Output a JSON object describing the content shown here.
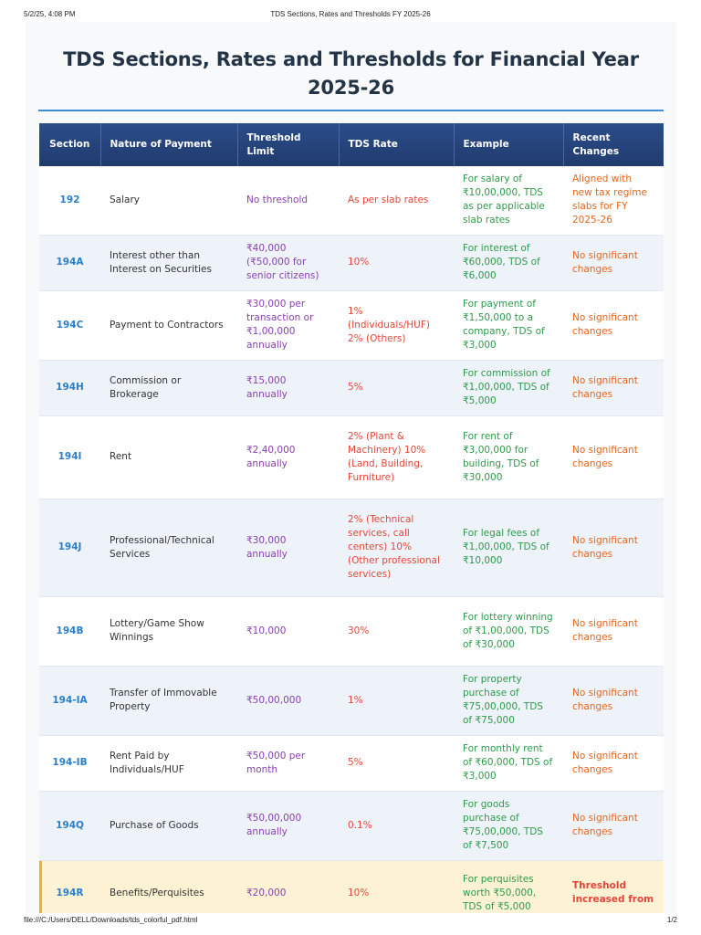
{
  "print_header": {
    "datetime": "5/2/25, 4:08 PM",
    "doc_title": "TDS Sections, Rates and Thresholds FY 2025-26"
  },
  "page": {
    "title": "TDS Sections, Rates and Thresholds for Financial Year 2025-26"
  },
  "colors": {
    "header_bg": "#2c4d8a",
    "accent_rule": "#3b8fd8",
    "section": "#2a7fc8",
    "threshold": "#8a3fb0",
    "rate": "#e2463a",
    "example": "#2e9a4a",
    "changes": "#e2661e",
    "highlight_row": "#fdf3d4"
  },
  "table": {
    "headers": [
      "Section",
      "Nature of Payment",
      "Threshold Limit",
      "TDS Rate",
      "Example",
      "Recent Changes"
    ],
    "rows": [
      {
        "section": "192",
        "nature": "Salary",
        "threshold": "No threshold",
        "rate": "As per slab rates",
        "example": "For salary of ₹10,00,000, TDS as per applicable slab rates",
        "changes": "Aligned with new tax regime slabs for FY 2025-26"
      },
      {
        "section": "194A",
        "nature": "Interest other than Interest on Securities",
        "threshold": "₹40,000 (₹50,000 for senior citizens)",
        "rate": "10%",
        "example": "For interest of ₹60,000, TDS of ₹6,000",
        "changes": "No significant changes"
      },
      {
        "section": "194C",
        "nature": "Payment to Contractors",
        "threshold": "₹30,000 per transaction or ₹1,00,000 annually",
        "rate": "1% (Individuals/HUF) 2% (Others)",
        "example": "For payment of ₹1,50,000 to a company, TDS of ₹3,000",
        "changes": "No significant changes"
      },
      {
        "section": "194H",
        "nature": "Commission or Brokerage",
        "threshold": "₹15,000 annually",
        "rate": "5%",
        "example": "For commission of ₹1,00,000, TDS of ₹5,000",
        "changes": "No significant changes"
      },
      {
        "section": "194I",
        "nature": "Rent",
        "threshold": "₹2,40,000 annually",
        "rate": "2% (Plant & Machinery) 10% (Land, Building, Furniture)",
        "example": "For rent of ₹3,00,000 for building, TDS of ₹30,000",
        "changes": "No significant changes"
      },
      {
        "section": "194J",
        "nature": "Professional/Technical Services",
        "threshold": "₹30,000 annually",
        "rate": "2% (Technical services, call centers) 10% (Other professional services)",
        "example": "For legal fees of ₹1,00,000, TDS of ₹10,000",
        "changes": "No significant changes"
      },
      {
        "section": "194B",
        "nature": "Lottery/Game Show Winnings",
        "threshold": "₹10,000",
        "rate": "30%",
        "example": "For lottery winning of ₹1,00,000, TDS of ₹30,000",
        "changes": "No significant changes"
      },
      {
        "section": "194-IA",
        "nature": "Transfer of Immovable Property",
        "threshold": "₹50,00,000",
        "rate": "1%",
        "example": "For property purchase of ₹75,00,000, TDS of ₹75,000",
        "changes": "No significant changes"
      },
      {
        "section": "194-IB",
        "nature": "Rent Paid by Individuals/HUF",
        "threshold": "₹50,000 per month",
        "rate": "5%",
        "example": "For monthly rent of ₹60,000, TDS of ₹3,000",
        "changes": "No significant changes"
      },
      {
        "section": "194Q",
        "nature": "Purchase of Goods",
        "threshold": "₹50,00,000 annually",
        "rate": "0.1%",
        "example": "For goods purchase of ₹75,00,000, TDS of ₹7,500",
        "changes": "No significant changes"
      },
      {
        "section": "194R",
        "nature": "Benefits/Perquisites",
        "threshold": "₹20,000",
        "rate": "10%",
        "example": "For perquisites worth ₹50,000, TDS of ₹5,000",
        "changes": "Threshold increased from"
      }
    ]
  },
  "print_footer": {
    "path": "file:///C:/Users/DELL/Downloads/tds_colorful_pdf.html",
    "page_num": "1/2"
  }
}
